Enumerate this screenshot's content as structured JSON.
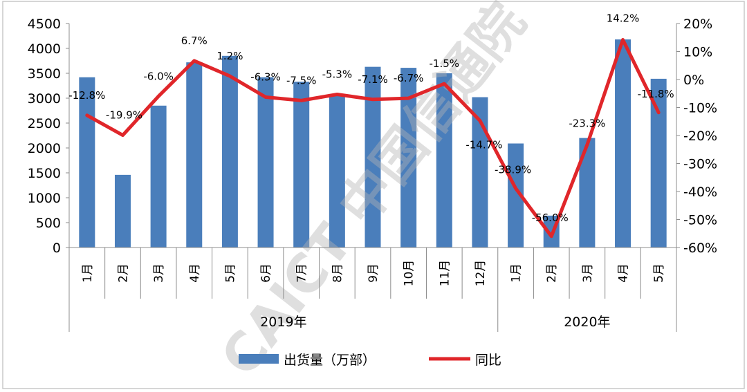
{
  "chart_data": {
    "type": "bar-line",
    "categories": [
      "1月",
      "2月",
      "3月",
      "4月",
      "5月",
      "6月",
      "7月",
      "8月",
      "9月",
      "10月",
      "11月",
      "12月",
      "1月",
      "2月",
      "3月",
      "4月",
      "5月"
    ],
    "groups": [
      {
        "label": "2019年",
        "start": 0,
        "end": 11
      },
      {
        "label": "2020年",
        "start": 12,
        "end": 16
      }
    ],
    "series": [
      {
        "name": "出货量（万部）",
        "type": "bar",
        "axis": "left",
        "color": "#4a7ebb",
        "values": [
          3420,
          1460,
          2850,
          3720,
          3850,
          3420,
          3330,
          3080,
          3630,
          3610,
          3500,
          3020,
          2090,
          640,
          2200,
          4180,
          3390
        ]
      },
      {
        "name": "同比",
        "type": "line",
        "axis": "right",
        "color": "#e0262a",
        "values": [
          -12.8,
          -19.9,
          -6.0,
          6.7,
          1.2,
          -6.3,
          -7.5,
          -5.3,
          -7.1,
          -6.7,
          -1.5,
          -14.7,
          -38.9,
          -56.0,
          -23.3,
          14.2,
          -11.8
        ],
        "labels": [
          "-12.8%",
          "-19.9%",
          "-6.0%",
          "6.7%",
          "1.2%",
          "-6.3%",
          "-7.5%",
          "-5.3%",
          "-7.1%",
          "-6.7%",
          "-1.5%",
          "-14.7%",
          "-38.9%",
          "-56.0%",
          "-23.3%",
          "14.2%",
          "-11.8%"
        ]
      }
    ],
    "y_left": {
      "min": 0,
      "max": 4500,
      "step": 500,
      "ticks": [
        "0",
        "500",
        "1000",
        "1500",
        "2000",
        "2500",
        "3000",
        "3500",
        "4000",
        "4500"
      ]
    },
    "y_right": {
      "min": -60,
      "max": 20,
      "step": 10,
      "ticks": [
        "-60%",
        "-50%",
        "-40%",
        "-30%",
        "-20%",
        "-10%",
        "0%",
        "10%",
        "20%"
      ]
    },
    "legend": {
      "position": "bottom",
      "bar_label": "出货量（万部）",
      "line_label": "同比"
    },
    "watermark": "CAICT 中国信通院"
  }
}
